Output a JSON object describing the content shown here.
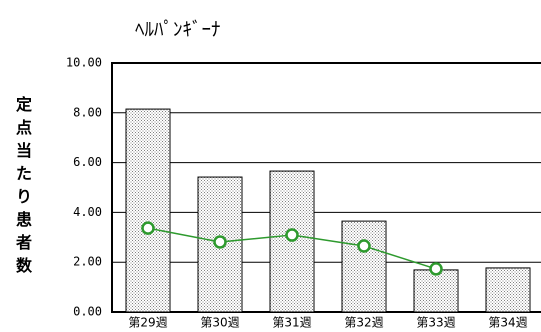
{
  "chart_data": {
    "type": "bar",
    "title": "ﾍﾙﾊﾟﾝｷﾞｰﾅ",
    "y_label": "定点当たり患者数",
    "categories": [
      "第29週",
      "第30週",
      "第31週",
      "第32週",
      "第33週",
      "第34週"
    ],
    "series": [
      {
        "type": "bar",
        "color": "#808080",
        "values": [
          8.15,
          5.42,
          5.66,
          3.65,
          1.69,
          1.77
        ]
      },
      {
        "type": "line",
        "color": "#2e9a2e",
        "values": [
          3.37,
          2.81,
          3.09,
          2.65,
          1.73,
          null
        ]
      }
    ],
    "ylim": [
      0,
      10
    ],
    "yticks": [
      {
        "value": 0,
        "label": "0.00"
      },
      {
        "value": 2,
        "label": "2.00"
      },
      {
        "value": 4,
        "label": "4.00"
      },
      {
        "value": 6,
        "label": "6.00"
      },
      {
        "value": 8,
        "label": "8.00"
      },
      {
        "value": 10,
        "label": "10.00"
      }
    ],
    "grid": true
  }
}
